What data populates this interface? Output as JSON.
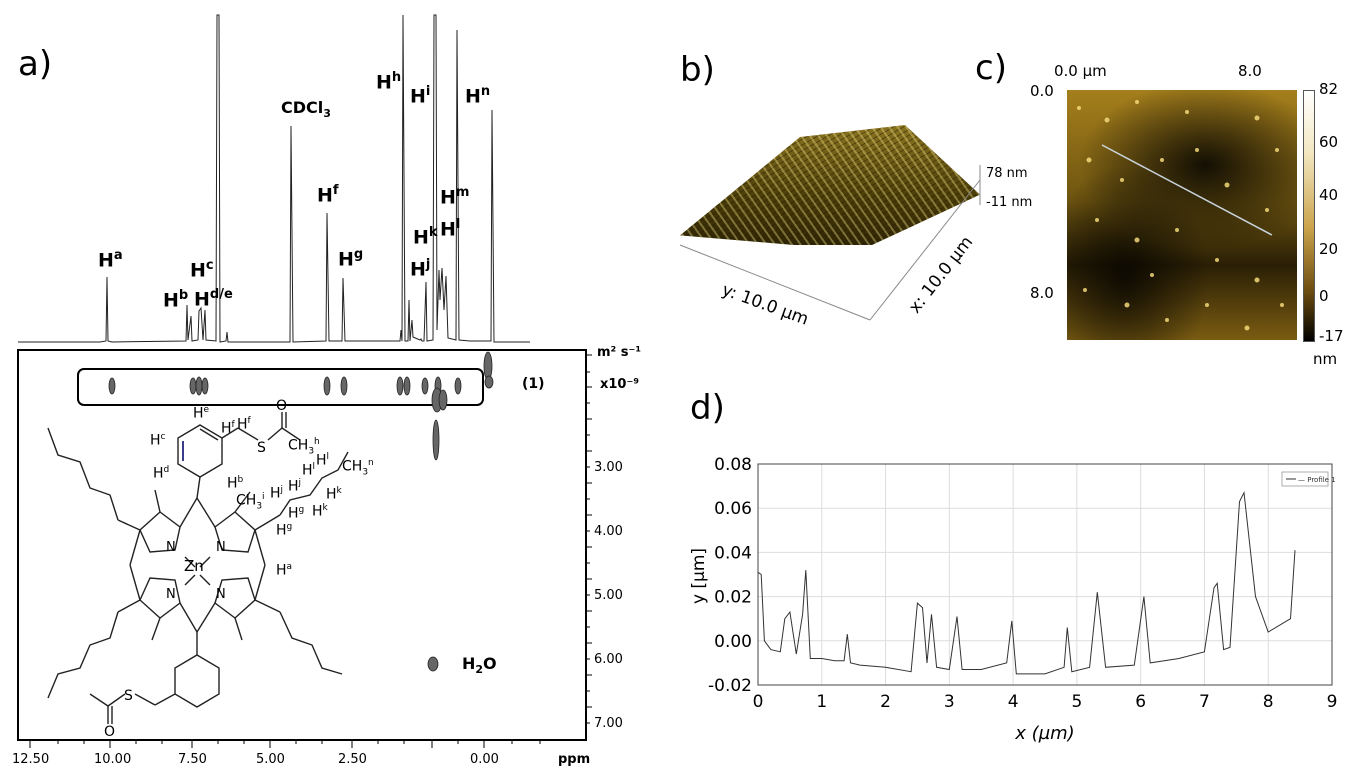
{
  "panels": {
    "a": "a)",
    "b": "b)",
    "c": "c)",
    "d": "d)"
  },
  "nmr": {
    "peak_labels": [
      {
        "base": "H",
        "sup": "a"
      },
      {
        "base": "H",
        "sup": "b"
      },
      {
        "base": "H",
        "sup": "c"
      },
      {
        "base": "H",
        "sup": "d/e"
      },
      {
        "base": "CDCl",
        "sub": "3"
      },
      {
        "base": "H",
        "sup": "f"
      },
      {
        "base": "H",
        "sup": "g"
      },
      {
        "base": "H",
        "sup": "h"
      },
      {
        "base": "H",
        "sup": "i"
      },
      {
        "base": "H",
        "sup": "j"
      },
      {
        "base": "H",
        "sup": "k"
      },
      {
        "base": "H",
        "sup": "l"
      },
      {
        "base": "H",
        "sup": "m"
      },
      {
        "base": "H",
        "sup": "n"
      }
    ],
    "x_ticks": [
      "12.50",
      "10.00",
      "7.50",
      "5.00",
      "2.50",
      "0.00"
    ],
    "x_unit": "ppm",
    "y_ticks": [
      "3.00",
      "4.00",
      "5.00",
      "6.00",
      "7.00"
    ],
    "y_unit_main": "m² s⁻¹",
    "y_unit_scale": "x10⁻⁹",
    "compound_label": "(1)",
    "water_label_base": "H",
    "water_label_sub": "2",
    "water_label_end": "O",
    "molecule": {
      "metal": "Zn",
      "n_atoms": [
        "N",
        "N",
        "N",
        "N"
      ],
      "oxygen": "O",
      "sulfur": "S",
      "protons": [
        {
          "base": "H",
          "sup": "e"
        },
        {
          "base": "H",
          "sup": "f"
        },
        {
          "base": "H",
          "sup": "f"
        },
        {
          "base": "H",
          "sup": "c"
        },
        {
          "base": "H",
          "sup": "d"
        },
        {
          "base": "H",
          "sup": "b"
        },
        {
          "base": "CH",
          "sub": "3",
          "sup": "h"
        },
        {
          "base": "CH",
          "sub": "3",
          "sup": "i"
        },
        {
          "base": "H",
          "sup": "j"
        },
        {
          "base": "H",
          "sup": "j"
        },
        {
          "base": "H",
          "sup": "l"
        },
        {
          "base": "H",
          "sup": "l"
        },
        {
          "base": "CH",
          "sub": "3",
          "sup": "n"
        },
        {
          "base": "H",
          "sup": "k"
        },
        {
          "base": "H",
          "sup": "k"
        },
        {
          "base": "H",
          "sup": "g"
        },
        {
          "base": "H",
          "sup": "g"
        },
        {
          "base": "H",
          "sup": "a"
        }
      ]
    }
  },
  "afm3d": {
    "z_max": "78 nm",
    "z_min": "-11 nm",
    "y_axis": "y: 10.0 µm",
    "x_axis": "x: 10.0 µm"
  },
  "afm2d": {
    "top_ticks": [
      "0.0 µm",
      "8.0"
    ],
    "left_ticks": [
      "0.0",
      "8.0"
    ],
    "colorbar_ticks": [
      "82",
      "60",
      "40",
      "20",
      "0",
      "-17"
    ],
    "colorbar_unit": "nm"
  },
  "chart_data": {
    "type": "line",
    "title": "",
    "xlabel": "x (µm)",
    "ylabel": "y [µm]",
    "xlim": [
      0,
      9
    ],
    "ylim": [
      -0.02,
      0.08
    ],
    "x_ticks": [
      "0",
      "1",
      "2",
      "3",
      "4",
      "5",
      "6",
      "7",
      "8",
      "9"
    ],
    "y_ticks": [
      "-0.02",
      "0.00",
      "0.02",
      "0.04",
      "0.06",
      "0.08"
    ],
    "grid": true,
    "legend": "top-right",
    "series": [
      {
        "name": "Profile 1",
        "x": [
          0,
          0.05,
          0.1,
          0.2,
          0.35,
          0.42,
          0.5,
          0.6,
          0.7,
          0.75,
          0.82,
          1.0,
          1.2,
          1.35,
          1.4,
          1.45,
          1.6,
          2.0,
          2.4,
          2.5,
          2.58,
          2.65,
          2.72,
          2.8,
          3.0,
          3.12,
          3.2,
          3.5,
          3.9,
          3.98,
          4.05,
          4.5,
          4.8,
          4.85,
          4.92,
          5.2,
          5.32,
          5.45,
          5.9,
          6.05,
          6.15,
          6.6,
          7.0,
          7.15,
          7.2,
          7.3,
          7.4,
          7.55,
          7.62,
          7.8,
          8.0,
          8.35,
          8.42
        ],
        "y": [
          0.031,
          0.03,
          0.0,
          -0.004,
          -0.005,
          0.01,
          0.013,
          -0.006,
          0.012,
          0.032,
          -0.008,
          -0.008,
          -0.009,
          -0.009,
          0.003,
          -0.01,
          -0.011,
          -0.012,
          -0.014,
          0.017,
          0.015,
          -0.01,
          0.012,
          -0.012,
          -0.013,
          0.011,
          -0.013,
          -0.013,
          -0.01,
          0.009,
          -0.015,
          -0.015,
          -0.012,
          0.006,
          -0.014,
          -0.012,
          0.022,
          -0.012,
          -0.011,
          0.02,
          -0.01,
          -0.008,
          -0.005,
          0.024,
          0.026,
          -0.004,
          -0.003,
          0.063,
          0.067,
          0.02,
          0.004,
          0.01,
          0.041
        ]
      }
    ]
  }
}
